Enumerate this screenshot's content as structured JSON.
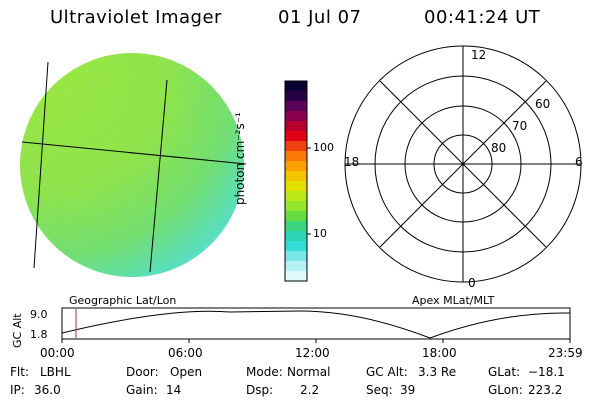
{
  "header": {
    "instrument": "Ultraviolet Imager",
    "date": "01 Jul 07",
    "time": "00:41:24 UT"
  },
  "colorbar": {
    "unit_label": "photon cm⁻²s⁻¹",
    "ticks": [
      "100",
      "10"
    ],
    "colors": [
      "#0b0033",
      "#2a0045",
      "#5a0058",
      "#8a0050",
      "#b80030",
      "#e00015",
      "#f04010",
      "#f87808",
      "#fca000",
      "#f4c400",
      "#e4e000",
      "#bce818",
      "#92e62c",
      "#64dc40",
      "#3cd47c",
      "#2cd4b4",
      "#34dcd6",
      "#7ae6ea",
      "#b4f0f4",
      "#e0fafc"
    ]
  },
  "left_panel": {
    "label": "Geographic Lat/Lon"
  },
  "right_panel": {
    "label": "Apex MLat/MLT",
    "mlt_labels": [
      "12",
      "18",
      "6",
      "0"
    ],
    "mlat_labels": [
      "60",
      "70",
      "80"
    ]
  },
  "altitude_plot": {
    "y_axis_title": "GC Alt",
    "y_ticks": [
      "9.0",
      "1.8"
    ],
    "x_ticks": [
      "00:00",
      "06:00",
      "12:00",
      "18:00",
      "23:59"
    ]
  },
  "status": {
    "flt_label": "Flt:",
    "flt_value": "LBHL",
    "ip_label": "IP:",
    "ip_value": "36.0",
    "door_label": "Door:",
    "door_value": "Open",
    "gain_label": "Gain:",
    "gain_value": "14",
    "mode_label": "Mode:",
    "mode_value": "Normal",
    "dsp_label": "Dsp:",
    "dsp_value": "2.2",
    "gcalt_label": "GC Alt:",
    "gcalt_value": "3.3 Re",
    "seq_label": "Seq:",
    "seq_value": "39",
    "glat_label": "GLat:",
    "glat_value": "−18.1",
    "glon_label": "GLon:",
    "glon_value": "223.2"
  }
}
